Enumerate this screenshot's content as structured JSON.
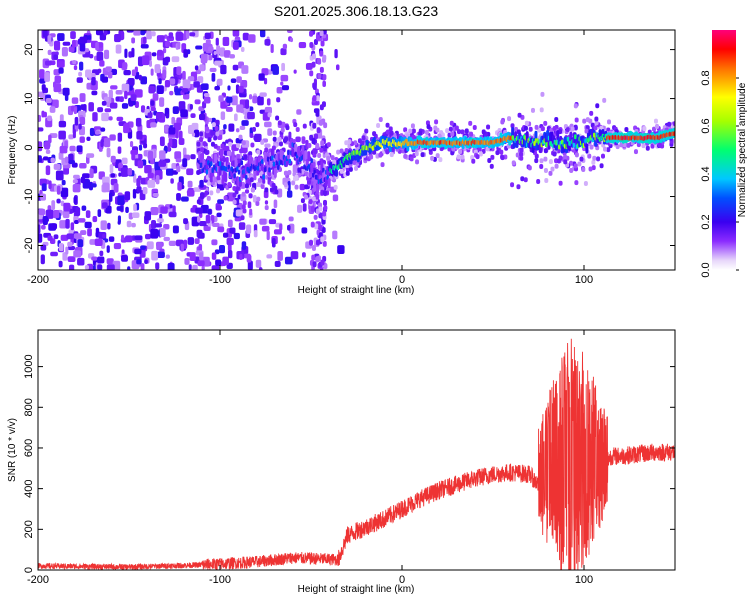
{
  "title": "S201.2025.306.18.13.G23",
  "chart_data": [
    {
      "type": "heatmap",
      "xlabel": "Height of straight line (km)",
      "ylabel": "Frequency (Hz)",
      "xlim": [
        -200,
        150
      ],
      "ylim": [
        -25,
        24
      ],
      "xticks": [
        -200,
        -100,
        0,
        100
      ],
      "yticks": [
        20,
        10,
        0,
        -10,
        -20
      ],
      "colorbar": {
        "label": "Normalized spectral amplitude",
        "range": [
          0,
          1
        ],
        "ticks": [
          0.0,
          0.2,
          0.4,
          0.6,
          0.8
        ]
      },
      "ridge": {
        "x": [
          -110,
          -100,
          -90,
          -80,
          -70,
          -60,
          -50,
          -45,
          -40,
          -35,
          -30,
          -20,
          -10,
          0,
          10,
          20,
          30,
          40,
          50,
          60,
          70,
          75,
          80,
          90,
          100,
          105,
          110,
          120,
          130,
          140,
          150
        ],
        "y": [
          -3,
          -4,
          -5,
          -4,
          -3,
          -1,
          -4,
          -7,
          -5,
          -4,
          -2,
          0,
          1,
          1,
          1,
          1,
          1,
          1,
          1,
          2,
          1,
          1,
          1,
          1,
          1,
          2,
          2,
          2,
          2,
          2,
          3
        ]
      }
    },
    {
      "type": "line",
      "xlabel": "Height of straight line (km)",
      "ylabel": "SNR (10 * v/v)",
      "xlim": [
        -200,
        150
      ],
      "ylim": [
        0,
        1180
      ],
      "xticks": [
        -200,
        -100,
        0,
        100
      ],
      "yticks": [
        0,
        200,
        400,
        600,
        800,
        1000
      ],
      "color": "#ee3333",
      "envelope": {
        "x": [
          -200,
          -150,
          -110,
          -100,
          -80,
          -60,
          -45,
          -35,
          -30,
          -20,
          -10,
          0,
          10,
          20,
          30,
          40,
          50,
          60,
          70,
          75,
          80,
          90,
          100,
          110,
          115,
          120,
          130,
          140,
          150
        ],
        "y": [
          20,
          15,
          25,
          30,
          40,
          60,
          55,
          50,
          170,
          210,
          250,
          300,
          350,
          390,
          420,
          450,
          470,
          480,
          470,
          420,
          460,
          520,
          540,
          520,
          560,
          560,
          570,
          580,
          580
        ]
      },
      "burst": {
        "x_range": [
          75,
          113
        ],
        "peak": 1180
      }
    }
  ]
}
